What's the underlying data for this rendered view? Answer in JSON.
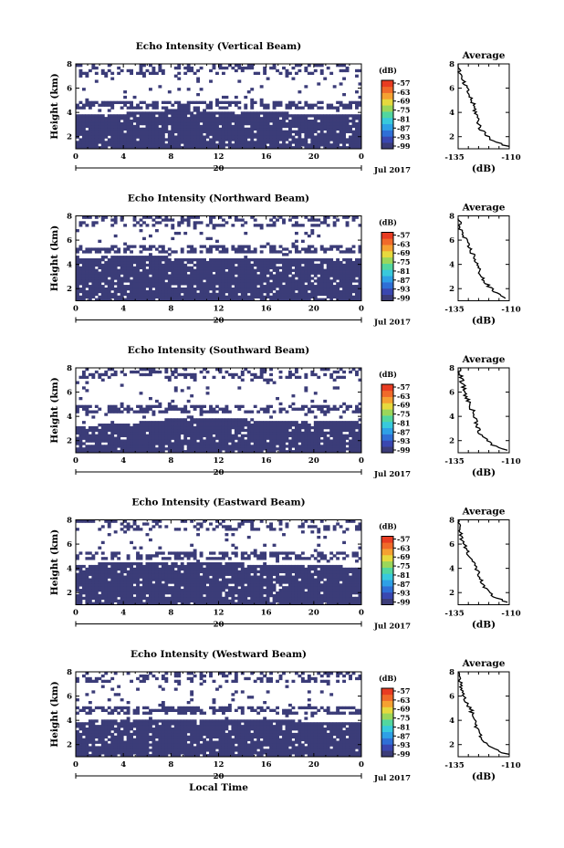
{
  "figure": {
    "date_label": "Jul 2017",
    "x_axis_label": "Local Time",
    "day_label": "20"
  },
  "colors": {
    "navy": "#3b3c78",
    "colorbar": [
      "#3b3c78",
      "#3a47b0",
      "#2f6fd6",
      "#2ea0e6",
      "#38c9dc",
      "#52d69f",
      "#9bd65a",
      "#e6d93e",
      "#f5a132",
      "#f06a2a",
      "#e83c22"
    ]
  },
  "colorbar": {
    "unit": "(dB)",
    "ticks": [
      "-57",
      "-63",
      "-69",
      "-75",
      "-81",
      "-87",
      "-93",
      "-99"
    ]
  },
  "chart_data": [
    {
      "type": "heatmap",
      "title": "Echo Intensity (Vertical Beam)",
      "ylabel": "Height (km)",
      "xlim": [
        0,
        24
      ],
      "ylim": [
        1,
        8
      ],
      "xticks": [
        "0",
        "4",
        "8",
        "12",
        "16",
        "20",
        "0"
      ],
      "yticks": [
        "2",
        "4",
        "6",
        "8"
      ],
      "boundary_km": [
        [
          0,
          3.8
        ],
        [
          2,
          3.9
        ],
        [
          4,
          3.9
        ],
        [
          6,
          4.1
        ],
        [
          8,
          4.2
        ],
        [
          10,
          4.3
        ],
        [
          12,
          4.0
        ],
        [
          14,
          4.0
        ],
        [
          16,
          4.1
        ],
        [
          18,
          3.9
        ],
        [
          20,
          3.9
        ],
        [
          22,
          3.9
        ],
        [
          24,
          3.8
        ]
      ],
      "secondary_layer_km": [
        4.3,
        5.0
      ],
      "average": {
        "title": "Average",
        "xlabel": "(dB)",
        "xlim": [
          -135,
          -110
        ],
        "ylim": [
          1,
          8
        ],
        "xticks": [
          "-135",
          "-110"
        ],
        "yticks": [
          "2",
          "4",
          "6",
          "8"
        ],
        "profile": [
          [
            -135,
            8.0
          ],
          [
            -134,
            7.0
          ],
          [
            -131,
            6.0
          ],
          [
            -128,
            4.8
          ],
          [
            -126,
            3.8
          ],
          [
            -124,
            2.6
          ],
          [
            -119,
            1.8
          ],
          [
            -111,
            1.2
          ]
        ]
      }
    },
    {
      "type": "heatmap",
      "title": "Echo Intensity (Northward Beam)",
      "ylabel": "Height (km)",
      "xlim": [
        0,
        24
      ],
      "ylim": [
        1,
        8
      ],
      "xticks": [
        "0",
        "4",
        "8",
        "12",
        "16",
        "20",
        "0"
      ],
      "yticks": [
        "2",
        "4",
        "6",
        "8"
      ],
      "boundary_km": [
        [
          0,
          4.5
        ],
        [
          2,
          4.6
        ],
        [
          4,
          4.7
        ],
        [
          6,
          4.7
        ],
        [
          8,
          4.6
        ],
        [
          10,
          4.6
        ],
        [
          12,
          4.6
        ],
        [
          14,
          4.6
        ],
        [
          16,
          4.5
        ],
        [
          18,
          4.5
        ],
        [
          20,
          4.6
        ],
        [
          22,
          4.6
        ],
        [
          24,
          4.4
        ]
      ],
      "secondary_layer_km": [
        5.0,
        5.6
      ],
      "average": {
        "title": "Average",
        "xlabel": "(dB)",
        "xlim": [
          -135,
          -110
        ],
        "ylim": [
          1,
          8
        ],
        "xticks": [
          "-135",
          "-110"
        ],
        "yticks": [
          "2",
          "4",
          "6",
          "8"
        ],
        "profile": [
          [
            -135,
            7.8
          ],
          [
            -133,
            6.5
          ],
          [
            -130,
            5.5
          ],
          [
            -127,
            4.6
          ],
          [
            -125,
            3.6
          ],
          [
            -122,
            2.5
          ],
          [
            -117,
            1.7
          ],
          [
            -111,
            1.2
          ]
        ]
      }
    },
    {
      "type": "heatmap",
      "title": "Echo Intensity (Southward Beam)",
      "ylabel": "Height (km)",
      "xlim": [
        0,
        24
      ],
      "ylim": [
        1,
        8
      ],
      "xticks": [
        "0",
        "4",
        "8",
        "12",
        "16",
        "20",
        "0"
      ],
      "yticks": [
        "2",
        "4",
        "6",
        "8"
      ],
      "boundary_km": [
        [
          0,
          3.2
        ],
        [
          2,
          3.3
        ],
        [
          4,
          3.4
        ],
        [
          6,
          3.6
        ],
        [
          8,
          3.8
        ],
        [
          10,
          3.8
        ],
        [
          12,
          3.8
        ],
        [
          14,
          3.8
        ],
        [
          16,
          3.7
        ],
        [
          18,
          3.6
        ],
        [
          20,
          3.6
        ],
        [
          22,
          3.6
        ],
        [
          24,
          3.5
        ]
      ],
      "secondary_layer_km": [
        4.2,
        5.0
      ],
      "average": {
        "title": "Average",
        "xlabel": "(dB)",
        "xlim": [
          -135,
          -110
        ],
        "ylim": [
          1,
          8
        ],
        "xticks": [
          "-135",
          "-110"
        ],
        "yticks": [
          "2",
          "4",
          "6",
          "8"
        ],
        "profile": [
          [
            -135,
            8.0
          ],
          [
            -133,
            6.8
          ],
          [
            -131,
            5.6
          ],
          [
            -128,
            4.5
          ],
          [
            -126,
            3.5
          ],
          [
            -124,
            2.5
          ],
          [
            -119,
            1.7
          ],
          [
            -111,
            1.2
          ]
        ]
      }
    },
    {
      "type": "heatmap",
      "title": "Echo Intensity (Eastward Beam)",
      "ylabel": "Height (km)",
      "xlim": [
        0,
        24
      ],
      "ylim": [
        1,
        8
      ],
      "xticks": [
        "0",
        "4",
        "8",
        "12",
        "16",
        "20",
        "0"
      ],
      "yticks": [
        "2",
        "4",
        "6",
        "8"
      ],
      "boundary_km": [
        [
          0,
          4.3
        ],
        [
          2,
          4.4
        ],
        [
          4,
          4.4
        ],
        [
          6,
          4.4
        ],
        [
          8,
          4.4
        ],
        [
          10,
          4.4
        ],
        [
          12,
          4.4
        ],
        [
          14,
          4.4
        ],
        [
          16,
          4.3
        ],
        [
          18,
          4.2
        ],
        [
          20,
          4.2
        ],
        [
          22,
          4.2
        ],
        [
          24,
          4.0
        ]
      ],
      "secondary_layer_km": [
        4.8,
        5.6
      ],
      "average": {
        "title": "Average",
        "xlabel": "(dB)",
        "xlim": [
          -135,
          -110
        ],
        "ylim": [
          1,
          8
        ],
        "xticks": [
          "-135",
          "-110"
        ],
        "yticks": [
          "2",
          "4",
          "6",
          "8"
        ],
        "profile": [
          [
            -135,
            8.0
          ],
          [
            -134,
            6.8
          ],
          [
            -131,
            5.6
          ],
          [
            -128,
            4.6
          ],
          [
            -125,
            3.6
          ],
          [
            -123,
            2.5
          ],
          [
            -118,
            1.7
          ],
          [
            -111,
            1.2
          ]
        ]
      }
    },
    {
      "type": "heatmap",
      "title": "Echo Intensity (Westward Beam)",
      "ylabel": "Height (km)",
      "xlim": [
        0,
        24
      ],
      "ylim": [
        1,
        8
      ],
      "xticks": [
        "0",
        "4",
        "8",
        "12",
        "16",
        "20",
        "0"
      ],
      "yticks": [
        "2",
        "4",
        "6",
        "8"
      ],
      "boundary_km": [
        [
          0,
          3.9
        ],
        [
          2,
          4.0
        ],
        [
          4,
          4.0
        ],
        [
          6,
          4.1
        ],
        [
          8,
          4.1
        ],
        [
          10,
          4.1
        ],
        [
          12,
          4.1
        ],
        [
          14,
          4.1
        ],
        [
          16,
          4.0
        ],
        [
          18,
          4.0
        ],
        [
          20,
          3.9
        ],
        [
          22,
          3.9
        ],
        [
          24,
          3.8
        ]
      ],
      "secondary_layer_km": [
        4.6,
        5.4
      ],
      "average": {
        "title": "Average",
        "xlabel": "(dB)",
        "xlim": [
          -135,
          -110
        ],
        "ylim": [
          1,
          8
        ],
        "xticks": [
          "-135",
          "-110"
        ],
        "yticks": [
          "2",
          "4",
          "6",
          "8"
        ],
        "profile": [
          [
            -135,
            8.0
          ],
          [
            -133,
            6.6
          ],
          [
            -131,
            5.6
          ],
          [
            -128,
            4.6
          ],
          [
            -126,
            3.5
          ],
          [
            -123,
            2.4
          ],
          [
            -118,
            1.7
          ],
          [
            -111,
            1.2
          ]
        ]
      }
    }
  ]
}
